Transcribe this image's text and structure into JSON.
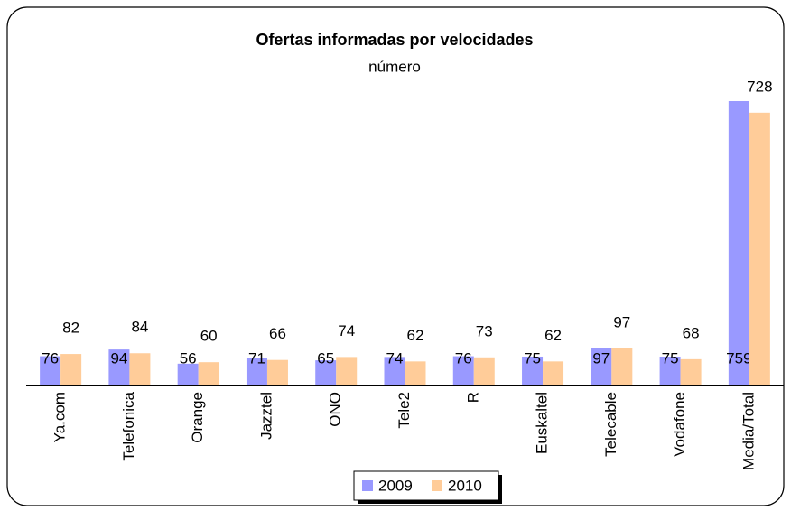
{
  "chart_data": {
    "type": "bar",
    "title": "Ofertas informadas por velocidades",
    "subtitle": "número",
    "categories": [
      "Ya.com",
      "Telefonica",
      "Orange",
      "Jazztel",
      "ONO",
      "Tele2",
      "R",
      "Euskaltel",
      "Telecable",
      "Vodafone",
      "Media/Total"
    ],
    "series": [
      {
        "name": "2009",
        "color": "#9999ff",
        "values": [
          76,
          94,
          56,
          71,
          65,
          74,
          76,
          75,
          97,
          75,
          759
        ]
      },
      {
        "name": "2010",
        "color": "#ffcc99",
        "values": [
          82,
          84,
          60,
          66,
          74,
          62,
          73,
          62,
          97,
          68,
          728
        ]
      }
    ],
    "legend": "bottom"
  }
}
